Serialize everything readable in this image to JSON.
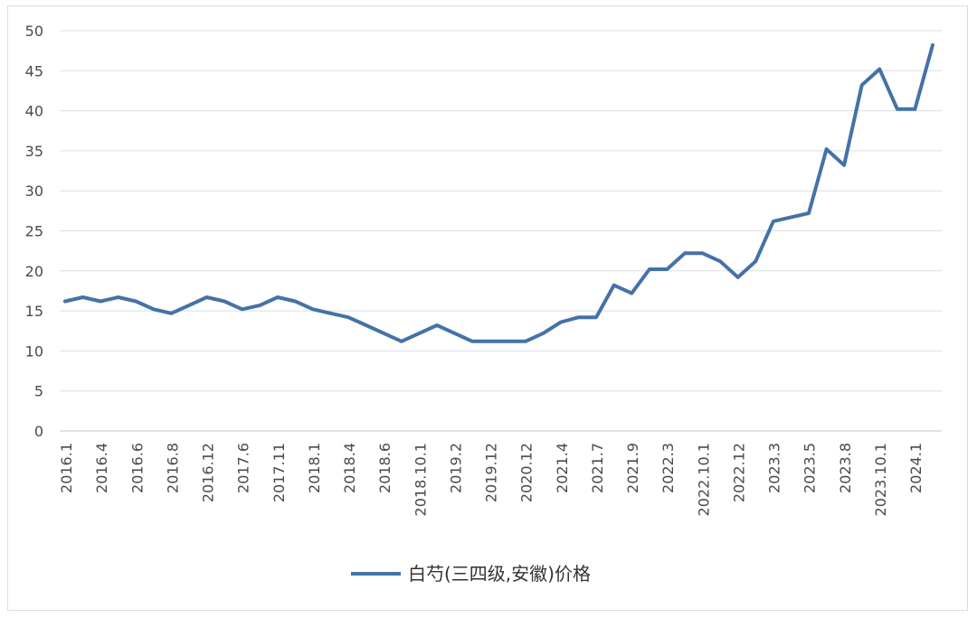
{
  "chart_data": {
    "type": "line",
    "ylim": [
      0,
      50
    ],
    "y_ticks": [
      0,
      5,
      10,
      15,
      20,
      25,
      30,
      35,
      40,
      45,
      50
    ],
    "grid": "horizontal",
    "legend_position": "bottom",
    "series_color": "#4472a8",
    "x_tick_labels": [
      "2016.1",
      "2016.4",
      "2016.6",
      "2016.8",
      "2016.12",
      "2017.6",
      "2017.11",
      "2018.1",
      "2018.4",
      "2018.6",
      "2018.10.1",
      "2019.2",
      "2019.12",
      "2020.12",
      "2021.4",
      "2021.7",
      "2021.9",
      "2022.3",
      "2022.10.1",
      "2022.12",
      "2023.3",
      "2023.5",
      "2023.8",
      "2023.10.1",
      "2024.1"
    ],
    "series": [
      {
        "name": "白芍(三四级,安徽)价格",
        "values": [
          16.2,
          16.7,
          16.2,
          16.7,
          16.2,
          15.2,
          14.7,
          15.7,
          16.7,
          16.2,
          15.2,
          15.7,
          16.7,
          16.2,
          15.2,
          14.7,
          14.2,
          13.2,
          12.2,
          11.2,
          12.2,
          13.2,
          12.2,
          11.2,
          11.2,
          11.2,
          11.2,
          12.2,
          13.6,
          14.2,
          14.2,
          18.2,
          17.2,
          20.2,
          20.2,
          22.2,
          22.2,
          21.2,
          19.2,
          21.2,
          26.2,
          26.7,
          27.2,
          35.2,
          33.2,
          43.2,
          45.2,
          40.2,
          40.2,
          48.2
        ]
      }
    ]
  }
}
